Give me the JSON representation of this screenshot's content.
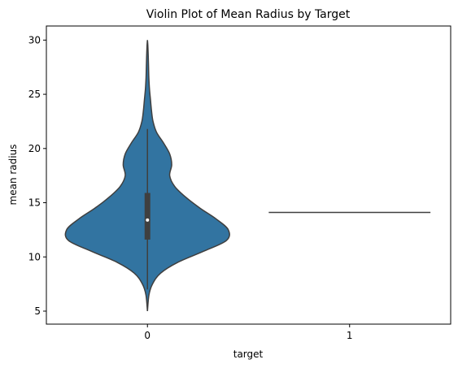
{
  "chart_data": {
    "type": "violin",
    "title": "Violin Plot of Mean Radius by Target",
    "xlabel": "target",
    "ylabel": "mean radius",
    "categories": [
      "0",
      "1"
    ],
    "ylim": [
      3.8,
      31.3
    ],
    "yticks": [
      5,
      10,
      15,
      20,
      25,
      30
    ],
    "grid": false,
    "legend": "none",
    "colors": {
      "violin_fill": "#3274a1",
      "edge": "#3f3f3f",
      "median": "#ffffff"
    },
    "violins": [
      {
        "category": "0",
        "min": 5.0,
        "max": 30.0,
        "q1": 11.6,
        "median": 13.4,
        "q3": 15.9,
        "whisker_low": 7.0,
        "whisker_high": 21.8,
        "density": [
          [
            5.0,
            0.0
          ],
          [
            6.5,
            0.015
          ],
          [
            7.5,
            0.05
          ],
          [
            8.5,
            0.13
          ],
          [
            9.5,
            0.3
          ],
          [
            10.5,
            0.55
          ],
          [
            11.5,
            0.78
          ],
          [
            12.5,
            0.8
          ],
          [
            13.5,
            0.68
          ],
          [
            14.5,
            0.52
          ],
          [
            15.5,
            0.38
          ],
          [
            16.5,
            0.27
          ],
          [
            17.5,
            0.22
          ],
          [
            18.5,
            0.24
          ],
          [
            19.5,
            0.22
          ],
          [
            20.5,
            0.16
          ],
          [
            21.5,
            0.09
          ],
          [
            22.5,
            0.055
          ],
          [
            23.5,
            0.04
          ],
          [
            24.5,
            0.03
          ],
          [
            25.5,
            0.02
          ],
          [
            26.5,
            0.014
          ],
          [
            27.5,
            0.011
          ],
          [
            28.5,
            0.008
          ],
          [
            29.5,
            0.004
          ],
          [
            30.0,
            0.0
          ]
        ]
      },
      {
        "category": "1",
        "value": 14.1,
        "note_shape": "flat line (single value)"
      }
    ]
  }
}
